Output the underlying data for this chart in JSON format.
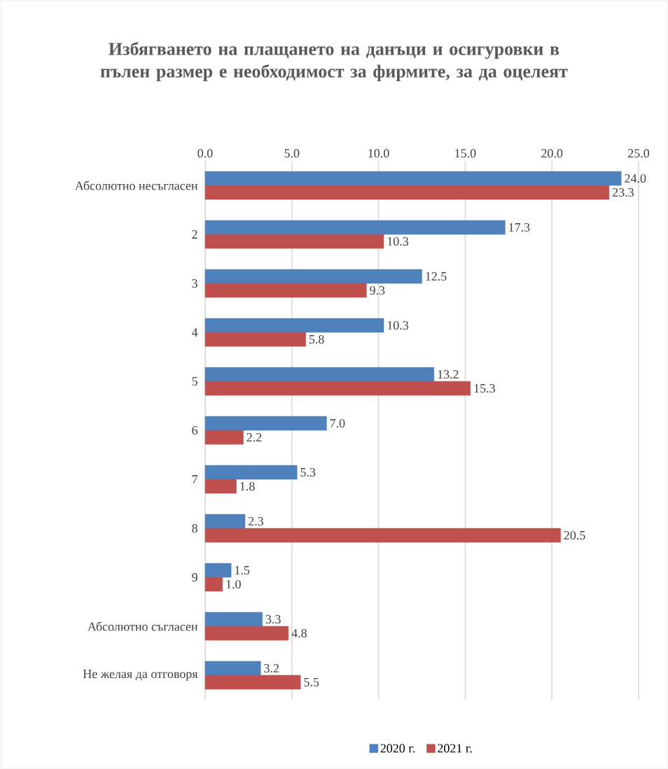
{
  "chart_data": {
    "type": "bar",
    "orientation": "horizontal",
    "title": "Избягването на плащането на данъци и осигуровки в пълен размер е необходимост за фирмите, за да оцелеят",
    "categories": [
      "Абсолютно несъгласен",
      "2",
      "3",
      "4",
      "5",
      "6",
      "7",
      "8",
      "9",
      "Абсолютно съгласен",
      "Не желая да отговоря"
    ],
    "series": [
      {
        "name": "2020 г.",
        "color": "#4f81bd",
        "values": [
          24.0,
          17.3,
          12.5,
          10.3,
          13.2,
          7.0,
          5.3,
          2.3,
          1.5,
          3.3,
          3.2
        ],
        "value_labels": [
          "24.0",
          "17.3",
          "12.5",
          "10.3",
          "13.2",
          "7.0",
          "5.3",
          "2.3",
          "1.5",
          "3.3",
          "3.2"
        ]
      },
      {
        "name": "2021 г.",
        "color": "#c0504d",
        "values": [
          23.3,
          10.3,
          9.3,
          5.8,
          15.3,
          2.2,
          1.8,
          20.5,
          1.0,
          4.8,
          5.5
        ],
        "value_labels": [
          "23.3",
          "10.3",
          "9.3",
          "5.8",
          "15.3",
          "2.2",
          "1.8",
          "20.5",
          "1.0",
          "4.8",
          "5.5"
        ]
      }
    ],
    "xlim": [
      0,
      25
    ],
    "xticks": [
      {
        "value": 0,
        "label": "0.0"
      },
      {
        "value": 5,
        "label": "5.0"
      },
      {
        "value": 10,
        "label": "10.0"
      },
      {
        "value": 15,
        "label": "15.0"
      },
      {
        "value": 20,
        "label": "20.0"
      },
      {
        "value": 25,
        "label": "25.0"
      }
    ],
    "grid": "x",
    "legend": "bottom"
  }
}
